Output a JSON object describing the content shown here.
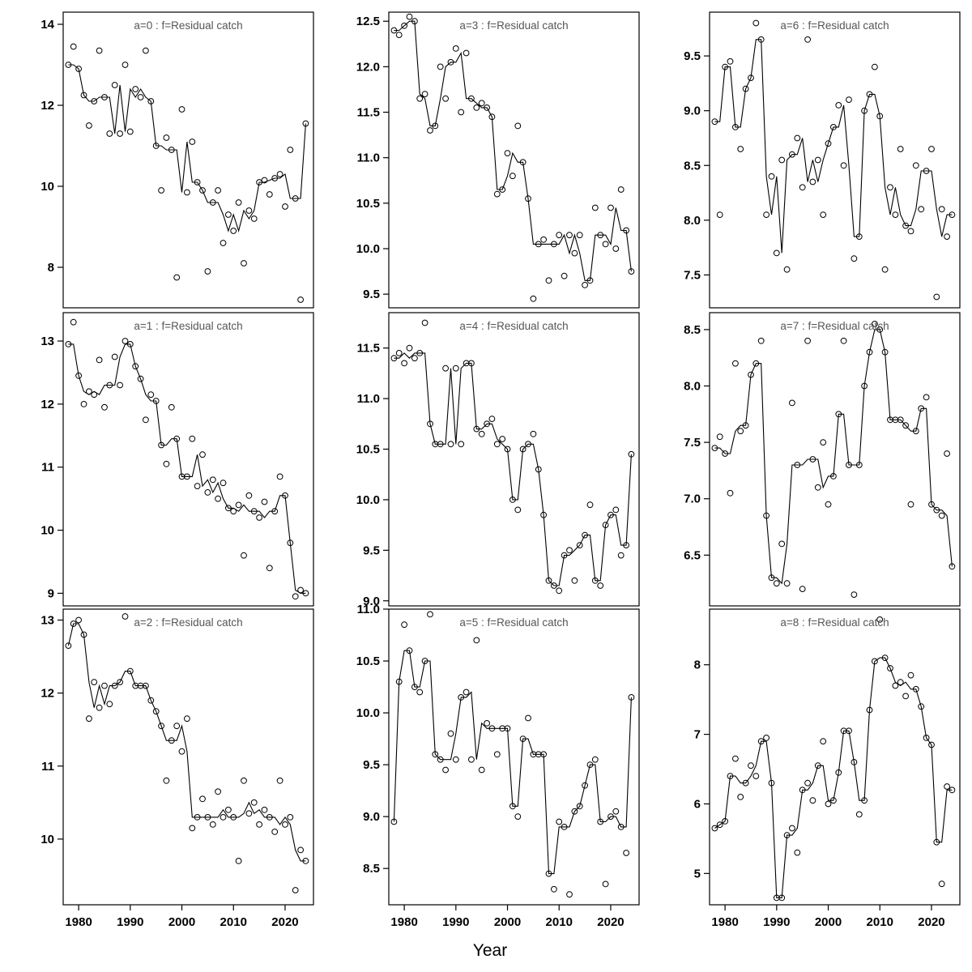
{
  "figure": {
    "background": "#ffffff",
    "line_color": "#000000",
    "point_color": "#000000",
    "title_color": "#565656"
  },
  "chart_data": {
    "type": "scatter",
    "subtype": "scatter points with fitted line, 3x3 facet grid (columns: a=0..2, a=3..5, a=6..8)",
    "title": "",
    "xlabel": "Year",
    "ylabel": "",
    "grid": false,
    "legend": "none",
    "fit_line": "3-point running median of values",
    "xlim": [
      1977,
      2025.5
    ],
    "x_ticks": [
      1980,
      1990,
      2000,
      2010,
      2020
    ],
    "x": [
      1978,
      1979,
      1980,
      1981,
      1982,
      1983,
      1984,
      1985,
      1986,
      1987,
      1988,
      1989,
      1990,
      1991,
      1992,
      1993,
      1994,
      1995,
      1996,
      1997,
      1998,
      1999,
      2000,
      2001,
      2002,
      2003,
      2004,
      2005,
      2006,
      2007,
      2008,
      2009,
      2010,
      2011,
      2012,
      2013,
      2014,
      2015,
      2016,
      2017,
      2018,
      2019,
      2020,
      2021,
      2022,
      2023,
      2024
    ],
    "panels": [
      {
        "id": "a0",
        "title": "a=0  :  f=Residual catch",
        "ylim": [
          7.0,
          14.3
        ],
        "yticks": [
          8,
          10,
          12,
          14
        ],
        "ytick_labels": [
          "8",
          "10",
          "12",
          "14"
        ],
        "values": [
          13.0,
          13.45,
          12.9,
          12.25,
          11.5,
          12.1,
          13.35,
          12.2,
          11.3,
          12.5,
          11.3,
          13.0,
          11.35,
          12.4,
          12.2,
          13.35,
          12.1,
          11.0,
          9.9,
          11.2,
          10.9,
          7.75,
          11.9,
          9.85,
          11.1,
          10.1,
          9.9,
          7.9,
          9.6,
          9.9,
          8.6,
          9.3,
          8.9,
          9.6,
          8.1,
          9.4,
          9.2,
          10.1,
          10.15,
          9.8,
          10.2,
          10.3,
          9.5,
          10.9,
          9.7,
          7.2,
          11.55
        ]
      },
      {
        "id": "a1",
        "title": "a=1  :  f=Residual catch",
        "ylim": [
          8.8,
          13.45
        ],
        "yticks": [
          9,
          10,
          11,
          12,
          13
        ],
        "ytick_labels": [
          "9",
          "10",
          "11",
          "12",
          "13"
        ],
        "values": [
          12.95,
          13.3,
          12.45,
          12.0,
          12.2,
          12.15,
          12.7,
          11.95,
          12.3,
          12.75,
          12.3,
          13.0,
          12.95,
          12.6,
          12.4,
          11.75,
          12.15,
          12.05,
          11.35,
          11.05,
          11.95,
          11.45,
          10.85,
          10.85,
          11.45,
          10.7,
          11.2,
          10.6,
          10.8,
          10.5,
          10.75,
          10.35,
          10.3,
          10.4,
          9.6,
          10.55,
          10.3,
          10.2,
          10.45,
          9.4,
          10.3,
          10.85,
          10.55,
          9.8,
          8.95,
          9.05,
          9.0
        ]
      },
      {
        "id": "a2",
        "title": "a=2  :  f=Residual catch",
        "ylim": [
          9.1,
          13.15
        ],
        "yticks": [
          10,
          11,
          12,
          13
        ],
        "ytick_labels": [
          "10",
          "11",
          "12",
          "13"
        ],
        "values": [
          12.65,
          12.95,
          13.0,
          12.8,
          11.65,
          12.15,
          11.8,
          12.1,
          11.85,
          12.1,
          12.15,
          13.05,
          12.3,
          12.1,
          12.1,
          12.1,
          11.9,
          11.75,
          11.55,
          10.8,
          11.35,
          11.55,
          11.2,
          11.65,
          10.15,
          10.3,
          10.55,
          10.3,
          10.2,
          10.65,
          10.3,
          10.4,
          10.3,
          9.7,
          10.8,
          10.35,
          10.5,
          10.2,
          10.4,
          10.3,
          10.1,
          10.8,
          10.2,
          10.3,
          9.3,
          9.85,
          9.7
        ]
      },
      {
        "id": "a3",
        "title": "a=3  :  f=Residual catch",
        "ylim": [
          9.35,
          12.6
        ],
        "yticks": [
          9.5,
          10.0,
          10.5,
          11.0,
          11.5,
          12.0,
          12.5
        ],
        "ytick_labels": [
          "9.5",
          "10.0",
          "10.5",
          "11.0",
          "11.5",
          "12.0",
          "12.5"
        ],
        "values": [
          12.4,
          12.35,
          12.45,
          12.55,
          12.5,
          11.65,
          11.7,
          11.3,
          11.35,
          12.0,
          11.65,
          12.05,
          12.2,
          11.5,
          12.15,
          11.65,
          11.55,
          11.6,
          11.55,
          11.45,
          10.6,
          10.65,
          11.05,
          10.8,
          11.35,
          10.95,
          10.55,
          9.45,
          10.05,
          10.1,
          9.65,
          10.05,
          10.15,
          9.7,
          10.15,
          9.95,
          10.15,
          9.6,
          9.65,
          10.45,
          10.15,
          10.05,
          10.45,
          10.0,
          10.65,
          10.2,
          9.75
        ]
      },
      {
        "id": "a4",
        "title": "a=4  :  f=Residual catch",
        "ylim": [
          8.95,
          11.85
        ],
        "yticks": [
          9.0,
          9.5,
          10.0,
          10.5,
          11.0,
          11.5
        ],
        "ytick_labels": [
          "9.0",
          "9.5",
          "10.0",
          "10.5",
          "11.0",
          "11.5"
        ],
        "values": [
          11.4,
          11.45,
          11.35,
          11.5,
          11.4,
          11.45,
          11.75,
          10.75,
          10.55,
          10.55,
          11.3,
          10.55,
          11.3,
          10.55,
          11.35,
          11.35,
          10.7,
          10.65,
          10.75,
          10.8,
          10.55,
          10.6,
          10.5,
          10.0,
          9.9,
          10.5,
          10.55,
          10.65,
          10.3,
          9.85,
          9.2,
          9.15,
          9.1,
          9.45,
          9.5,
          9.2,
          9.55,
          9.65,
          9.95,
          9.2,
          9.15,
          9.75,
          9.85,
          9.9,
          9.45,
          9.55,
          10.45
        ]
      },
      {
        "id": "a5",
        "title": "a=5  :  f=Residual catch",
        "ylim": [
          8.15,
          11.0
        ],
        "yticks": [
          8.5,
          9.0,
          9.5,
          10.0,
          10.5,
          11.0
        ],
        "ytick_labels": [
          "8.5",
          "9.0",
          "9.5",
          "10.0",
          "10.5",
          "11.0"
        ],
        "values": [
          8.95,
          10.3,
          10.85,
          10.6,
          10.25,
          10.2,
          10.5,
          10.95,
          9.6,
          9.55,
          9.45,
          9.8,
          9.55,
          10.15,
          10.2,
          9.55,
          10.7,
          9.45,
          9.9,
          9.85,
          9.6,
          9.85,
          9.85,
          9.1,
          9.0,
          9.75,
          9.95,
          9.6,
          9.6,
          9.6,
          8.45,
          8.3,
          8.95,
          8.9,
          8.25,
          9.05,
          9.1,
          9.3,
          9.5,
          9.55,
          8.95,
          8.35,
          9.0,
          9.05,
          8.9,
          8.65,
          10.15
        ]
      },
      {
        "id": "a6",
        "title": "a=6  :  f=Residual catch",
        "ylim": [
          7.2,
          9.9
        ],
        "yticks": [
          7.5,
          8.0,
          8.5,
          9.0,
          9.5
        ],
        "ytick_labels": [
          "7.5",
          "8.0",
          "8.5",
          "9.0",
          "9.5"
        ],
        "values": [
          8.9,
          8.05,
          9.4,
          9.45,
          8.85,
          8.65,
          9.2,
          9.3,
          9.8,
          9.65,
          8.05,
          8.4,
          7.7,
          8.55,
          7.55,
          8.6,
          8.75,
          8.3,
          9.65,
          8.35,
          8.55,
          8.05,
          8.7,
          8.85,
          9.05,
          8.5,
          9.1,
          7.65,
          7.85,
          9.0,
          9.15,
          9.4,
          8.95,
          7.55,
          8.3,
          8.05,
          8.65,
          7.95,
          7.9,
          8.5,
          8.1,
          8.45,
          8.65,
          7.3,
          8.1,
          7.85,
          8.05
        ]
      },
      {
        "id": "a7",
        "title": "a=7  :  f=Residual catch",
        "ylim": [
          6.05,
          8.65
        ],
        "yticks": [
          6.5,
          7.0,
          7.5,
          8.0,
          8.5
        ],
        "ytick_labels": [
          "6.5",
          "7.0",
          "7.5",
          "8.0",
          "8.5"
        ],
        "values": [
          7.45,
          7.55,
          7.4,
          7.05,
          8.2,
          7.6,
          7.65,
          8.1,
          8.2,
          8.4,
          6.85,
          6.3,
          6.25,
          6.6,
          6.25,
          7.85,
          7.3,
          6.2,
          8.4,
          7.35,
          7.1,
          7.5,
          6.95,
          7.2,
          7.75,
          8.4,
          7.3,
          6.15,
          7.3,
          8.0,
          8.3,
          8.55,
          8.5,
          8.3,
          7.7,
          7.7,
          7.7,
          7.65,
          6.95,
          7.6,
          7.8,
          7.9,
          6.95,
          6.9,
          6.85,
          7.4,
          6.4
        ]
      },
      {
        "id": "a8",
        "title": "a=8  :  f=Residual catch",
        "ylim": [
          4.55,
          8.8
        ],
        "yticks": [
          5,
          6,
          7,
          8
        ],
        "ytick_labels": [
          "5",
          "6",
          "7",
          "8"
        ],
        "values": [
          5.65,
          5.7,
          5.75,
          6.4,
          6.65,
          6.1,
          6.3,
          6.55,
          6.4,
          6.9,
          6.95,
          6.3,
          4.65,
          4.65,
          5.55,
          5.65,
          5.3,
          6.2,
          6.3,
          6.05,
          6.55,
          6.9,
          6.0,
          6.05,
          6.45,
          7.05,
          7.05,
          6.6,
          5.85,
          6.05,
          7.35,
          8.05,
          8.65,
          8.1,
          7.95,
          7.7,
          7.75,
          7.55,
          7.85,
          7.65,
          7.4,
          6.95,
          6.85,
          5.45,
          4.85,
          6.25,
          6.2
        ]
      }
    ]
  }
}
